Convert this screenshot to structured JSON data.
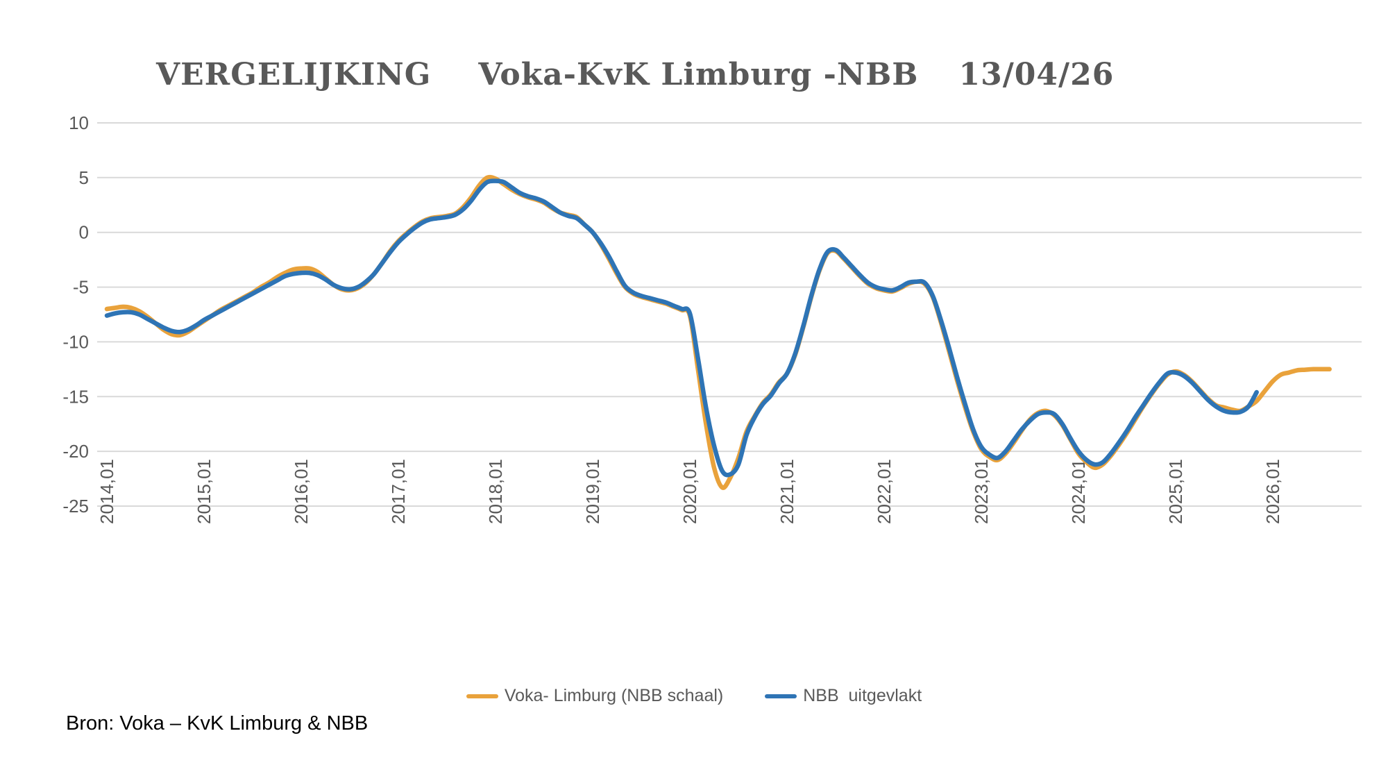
{
  "title": {
    "part1": "VERGELIJKING",
    "part2": "Voka-KvK Limburg -NBB",
    "part3": "13/04/26"
  },
  "source": "Bron: Voka – KvK Limburg & NBB",
  "colors": {
    "voka_orange": "#E9A23B",
    "nbb_blue": "#2E74B5",
    "gridline": "#D9D9D9",
    "axis_text": "#595959",
    "title_text": "#595959",
    "source_text": "#000000"
  },
  "legend": [
    {
      "label": "Voka- Limburg (NBB schaal)",
      "series": "voka"
    },
    {
      "label": "NBB  uitgevlakt",
      "series": "nbb"
    }
  ],
  "chart_data": {
    "type": "line",
    "title": "VERGELIJKING Voka-KvK Limburg -NBB 13/04/26",
    "x_unit": "month",
    "start_period": "2014,01",
    "x_tick_labels": [
      "2014,01",
      "2015,01",
      "2016,01",
      "2017,01",
      "2018,01",
      "2019,01",
      "2020,01",
      "2021,01",
      "2022,01",
      "2023,01",
      "2024,01",
      "2025,01",
      "2026,01"
    ],
    "x_tick_month_index": [
      0,
      12,
      24,
      36,
      48,
      60,
      72,
      84,
      96,
      108,
      120,
      132,
      144
    ],
    "y_ticks": [
      10,
      5,
      0,
      -5,
      -10,
      -15,
      -20,
      -25
    ],
    "ylim": [
      -25,
      10
    ],
    "grid": "horizontal",
    "legend_position": "bottom",
    "series": [
      {
        "name": "Voka- Limburg (NBB schaal)",
        "color": "#E9A23B",
        "start_month_index": 0,
        "values": [
          -7.0,
          -6.9,
          -6.8,
          -6.9,
          -7.2,
          -7.7,
          -8.3,
          -8.9,
          -9.3,
          -9.4,
          -9.1,
          -8.6,
          -8.1,
          -7.6,
          -7.1,
          -6.7,
          -6.3,
          -5.9,
          -5.5,
          -5.0,
          -4.6,
          -4.1,
          -3.7,
          -3.4,
          -3.3,
          -3.3,
          -3.6,
          -4.2,
          -4.8,
          -5.2,
          -5.3,
          -5.1,
          -4.6,
          -3.8,
          -2.8,
          -1.7,
          -0.8,
          -0.1,
          0.5,
          1.0,
          1.3,
          1.4,
          1.5,
          1.7,
          2.3,
          3.2,
          4.3,
          5.0,
          4.9,
          4.4,
          3.9,
          3.5,
          3.2,
          3.0,
          2.7,
          2.2,
          1.8,
          1.6,
          1.4,
          0.7,
          0.0,
          -1.1,
          -2.4,
          -3.8,
          -5.0,
          -5.6,
          -5.9,
          -6.1,
          -6.3,
          -6.5,
          -6.8,
          -7.1,
          -7.6,
          -12.5,
          -17.5,
          -21.5,
          -23.3,
          -22.4,
          -20.6,
          -18.2,
          -16.8,
          -15.6,
          -14.8,
          -13.7,
          -12.9,
          -11.2,
          -8.7,
          -5.9,
          -3.5,
          -1.9,
          -1.7,
          -2.4,
          -3.2,
          -4.0,
          -4.7,
          -5.1,
          -5.3,
          -5.4,
          -5.1,
          -4.7,
          -4.5,
          -4.7,
          -5.9,
          -8.2,
          -10.8,
          -13.5,
          -16.0,
          -18.2,
          -19.8,
          -20.5,
          -20.8,
          -20.2,
          -19.2,
          -18.1,
          -17.1,
          -16.5,
          -16.3,
          -16.7,
          -17.6,
          -18.9,
          -20.2,
          -21.0,
          -21.5,
          -21.2,
          -20.4,
          -19.4,
          -18.3,
          -17.1,
          -15.9,
          -14.8,
          -13.8,
          -13.0,
          -12.7,
          -13.0,
          -13.6,
          -14.4,
          -15.2,
          -15.8,
          -16.0,
          -16.2,
          -16.3,
          -15.9,
          -15.4,
          -14.5,
          -13.6,
          -13.0,
          -12.8,
          -12.6,
          -12.55,
          -12.5,
          -12.5,
          -12.5
        ]
      },
      {
        "name": "NBB  uitgevlakt",
        "color": "#2E74B5",
        "start_month_index": 0,
        "values": [
          -7.6,
          -7.4,
          -7.3,
          -7.3,
          -7.5,
          -7.9,
          -8.3,
          -8.7,
          -9.0,
          -9.1,
          -8.9,
          -8.5,
          -8.0,
          -7.6,
          -7.2,
          -6.8,
          -6.4,
          -6.0,
          -5.6,
          -5.2,
          -4.8,
          -4.4,
          -4.0,
          -3.8,
          -3.7,
          -3.7,
          -3.9,
          -4.3,
          -4.8,
          -5.1,
          -5.2,
          -5.0,
          -4.5,
          -3.8,
          -2.8,
          -1.8,
          -0.9,
          -0.2,
          0.4,
          0.9,
          1.2,
          1.3,
          1.4,
          1.6,
          2.1,
          2.9,
          3.9,
          4.6,
          4.7,
          4.6,
          4.1,
          3.6,
          3.3,
          3.1,
          2.8,
          2.3,
          1.8,
          1.5,
          1.3,
          0.7,
          0.0,
          -1.0,
          -2.2,
          -3.6,
          -4.9,
          -5.5,
          -5.8,
          -6.0,
          -6.2,
          -6.4,
          -6.7,
          -7.0,
          -7.4,
          -11.5,
          -16.0,
          -19.5,
          -21.8,
          -22.1,
          -21.2,
          -18.5,
          -16.9,
          -15.7,
          -14.9,
          -13.8,
          -12.9,
          -11.1,
          -8.6,
          -5.8,
          -3.4,
          -1.8,
          -1.6,
          -2.3,
          -3.1,
          -3.9,
          -4.6,
          -5.0,
          -5.2,
          -5.3,
          -5.0,
          -4.6,
          -4.5,
          -4.6,
          -5.8,
          -8.0,
          -10.5,
          -13.2,
          -15.7,
          -18.0,
          -19.6,
          -20.3,
          -20.6,
          -20.0,
          -19.0,
          -18.0,
          -17.2,
          -16.6,
          -16.45,
          -16.6,
          -17.5,
          -18.8,
          -20.0,
          -20.8,
          -21.2,
          -21.0,
          -20.2,
          -19.2,
          -18.1,
          -16.9,
          -15.8,
          -14.7,
          -13.7,
          -12.9,
          -12.8,
          -13.1,
          -13.7,
          -14.5,
          -15.3,
          -15.9,
          -16.3,
          -16.45,
          -16.4,
          -15.9,
          -14.6
        ]
      }
    ]
  }
}
